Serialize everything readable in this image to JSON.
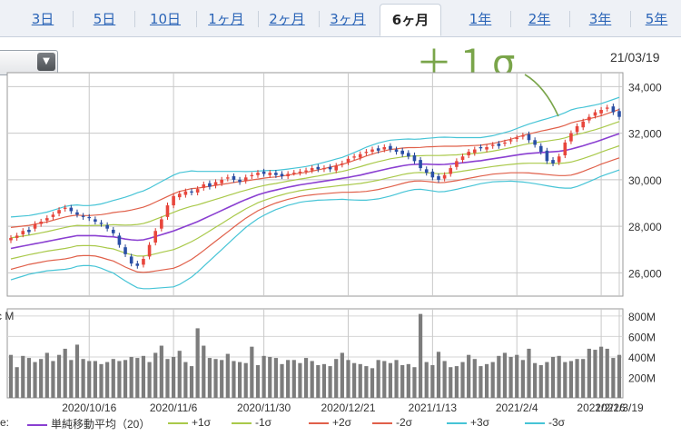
{
  "tabs": [
    {
      "label": "3日",
      "active": false
    },
    {
      "label": "5日",
      "active": false
    },
    {
      "label": "10日",
      "active": false
    },
    {
      "label": "1ヶ月",
      "active": false
    },
    {
      "label": "2ヶ月",
      "active": false
    },
    {
      "label": "3ヶ月",
      "active": false
    },
    {
      "label": "6ヶ月",
      "active": true
    },
    {
      "label": "1年",
      "active": false
    },
    {
      "label": "2年",
      "active": false
    },
    {
      "label": "3年",
      "active": false
    },
    {
      "label": "5年",
      "active": false
    }
  ],
  "dropdown_icon": "chevron-down-icon",
  "date_label": "21/03/19",
  "annotation": "＋１σ",
  "legend": [
    {
      "label": "単純移動平均（20）",
      "color": "#8a3fd1"
    },
    {
      "label": "+1σ",
      "color": "#a9c94a"
    },
    {
      "label": "-1σ",
      "color": "#a9c94a"
    },
    {
      "label": "+2σ",
      "color": "#e0604a"
    },
    {
      "label": "-2σ",
      "color": "#e0604a"
    },
    {
      "label": "+3σ",
      "color": "#46c4d6"
    },
    {
      "label": "-3σ",
      "color": "#46c4d6"
    }
  ],
  "legend_prefix": "e:",
  "volume_unit_label": "c M",
  "chart_data": {
    "type": "candlestick-bollinger",
    "price_axis": {
      "ticks": [
        "34,000",
        "32,000",
        "30,000",
        "28,000",
        "26,000"
      ],
      "tick_values": [
        34000,
        32000,
        30000,
        28000,
        26000
      ],
      "range": [
        25000,
        34600
      ]
    },
    "volume_axis": {
      "ticks": [
        "800M",
        "600M",
        "400M",
        "200M"
      ],
      "tick_values": [
        800,
        600,
        400,
        200
      ],
      "range": [
        0,
        870
      ]
    },
    "x_labels": [
      "2020/10/16",
      "2020/11/6",
      "2020/11/30",
      "2020/12/21",
      "2021/1/13",
      "2021/2/4",
      "2021/2/26",
      "2021/3/19"
    ],
    "closes": [
      27500,
      27600,
      27800,
      27750,
      28100,
      28200,
      28350,
      28500,
      28700,
      28800,
      28650,
      28500,
      28400,
      28350,
      28200,
      28100,
      27900,
      27700,
      27200,
      26800,
      26400,
      26300,
      26600,
      27200,
      27800,
      28300,
      28900,
      29300,
      29400,
      29500,
      29450,
      29600,
      29800,
      29700,
      29900,
      30000,
      30100,
      30000,
      29900,
      30100,
      30200,
      30300,
      30250,
      30300,
      30200,
      30150,
      30250,
      30300,
      30350,
      30400,
      30500,
      30450,
      30500,
      30450,
      30600,
      30700,
      30900,
      31000,
      31100,
      31200,
      31300,
      31250,
      31400,
      31300,
      31200,
      31100,
      31000,
      30800,
      30500,
      30300,
      30100,
      30000,
      30200,
      30500,
      30800,
      31000,
      31200,
      31300,
      31350,
      31400,
      31500,
      31450,
      31600,
      31700,
      31800,
      31900,
      31700,
      31500,
      31200,
      30800,
      30700,
      31000,
      31600,
      32000,
      32300,
      32500,
      32700,
      32900,
      33000,
      33100,
      32900,
      32700
    ],
    "opens": [
      27400,
      27500,
      27650,
      27850,
      27900,
      28100,
      28250,
      28400,
      28550,
      28750,
      28800,
      28600,
      28450,
      28400,
      28300,
      28150,
      28050,
      27850,
      27600,
      27100,
      26700,
      26400,
      26350,
      26700,
      27300,
      27900,
      28400,
      28900,
      29250,
      29350,
      29500,
      29450,
      29650,
      29850,
      29750,
      29850,
      30050,
      30150,
      30000,
      29950,
      30150,
      30200,
      30350,
      30200,
      30300,
      30250,
      30150,
      30300,
      30300,
      30350,
      30400,
      30550,
      30450,
      30550,
      30400,
      30650,
      30750,
      30950,
      30950,
      31150,
      31200,
      31350,
      31300,
      31450,
      31300,
      31250,
      31150,
      31050,
      30850,
      30450,
      30350,
      30150,
      30050,
      30250,
      30550,
      30850,
      31050,
      31150,
      31400,
      31300,
      31450,
      31550,
      31550,
      31650,
      31750,
      31850,
      31950,
      31700,
      31450,
      31250,
      30850,
      30750,
      31050,
      31650,
      32050,
      32250,
      32550,
      32750,
      32850,
      33050,
      33150,
      32950
    ],
    "sma20": [
      27050,
      27100,
      27150,
      27200,
      27250,
      27300,
      27350,
      27400,
      27450,
      27500,
      27550,
      27600,
      27600,
      27600,
      27600,
      27580,
      27560,
      27550,
      27500,
      27450,
      27420,
      27400,
      27420,
      27480,
      27560,
      27640,
      27720,
      27800,
      27900,
      28000,
      28100,
      28200,
      28320,
      28440,
      28560,
      28680,
      28800,
      28920,
      29040,
      29150,
      29250,
      29350,
      29430,
      29500,
      29560,
      29620,
      29680,
      29730,
      29780,
      29820,
      29860,
      29900,
      29940,
      29980,
      30020,
      30060,
      30100,
      30150,
      30200,
      30260,
      30320,
      30380,
      30440,
      30500,
      30550,
      30600,
      30640,
      30660,
      30670,
      30670,
      30660,
      30650,
      30660,
      30680,
      30700,
      30730,
      30760,
      30790,
      30820,
      30860,
      30900,
      30940,
      30980,
      31020,
      31060,
      31100,
      31130,
      31150,
      31170,
      31180,
      31200,
      31220,
      31260,
      31320,
      31390,
      31460,
      31540,
      31620,
      31710,
      31800,
      31890,
      31980
    ],
    "sd": [
      450,
      440,
      430,
      420,
      420,
      420,
      420,
      430,
      440,
      450,
      450,
      440,
      430,
      430,
      440,
      460,
      490,
      520,
      560,
      600,
      640,
      680,
      700,
      720,
      740,
      760,
      780,
      800,
      800,
      780,
      760,
      720,
      680,
      640,
      600,
      560,
      520,
      480,
      440,
      400,
      370,
      340,
      320,
      300,
      280,
      270,
      260,
      255,
      250,
      250,
      255,
      260,
      270,
      280,
      290,
      300,
      320,
      340,
      360,
      380,
      390,
      400,
      400,
      400,
      390,
      380,
      370,
      360,
      360,
      370,
      380,
      390,
      390,
      380,
      370,
      360,
      350,
      340,
      330,
      330,
      330,
      340,
      350,
      360,
      380,
      400,
      420,
      440,
      460,
      480,
      500,
      520,
      540,
      560,
      560,
      550,
      540,
      530,
      520,
      520,
      520,
      520
    ],
    "volumes": [
      420,
      300,
      410,
      390,
      350,
      380,
      440,
      360,
      420,
      480,
      370,
      520,
      380,
      360,
      360,
      330,
      350,
      380,
      360,
      370,
      400,
      390,
      410,
      350,
      440,
      510,
      380,
      400,
      460,
      350,
      310,
      680,
      510,
      390,
      380,
      370,
      430,
      360,
      350,
      340,
      500,
      320,
      410,
      400,
      390,
      330,
      370,
      370,
      340,
      390,
      360,
      320,
      330,
      310,
      380,
      440,
      370,
      340,
      330,
      310,
      290,
      370,
      360,
      340,
      370,
      320,
      330,
      300,
      820,
      350,
      320,
      450,
      360,
      300,
      310,
      350,
      420,
      380,
      310,
      330,
      350,
      410,
      440,
      400,
      420,
      370,
      480,
      340,
      320,
      350,
      400,
      410,
      350,
      360,
      380,
      380,
      480,
      470,
      500,
      480,
      390,
      420
    ]
  }
}
